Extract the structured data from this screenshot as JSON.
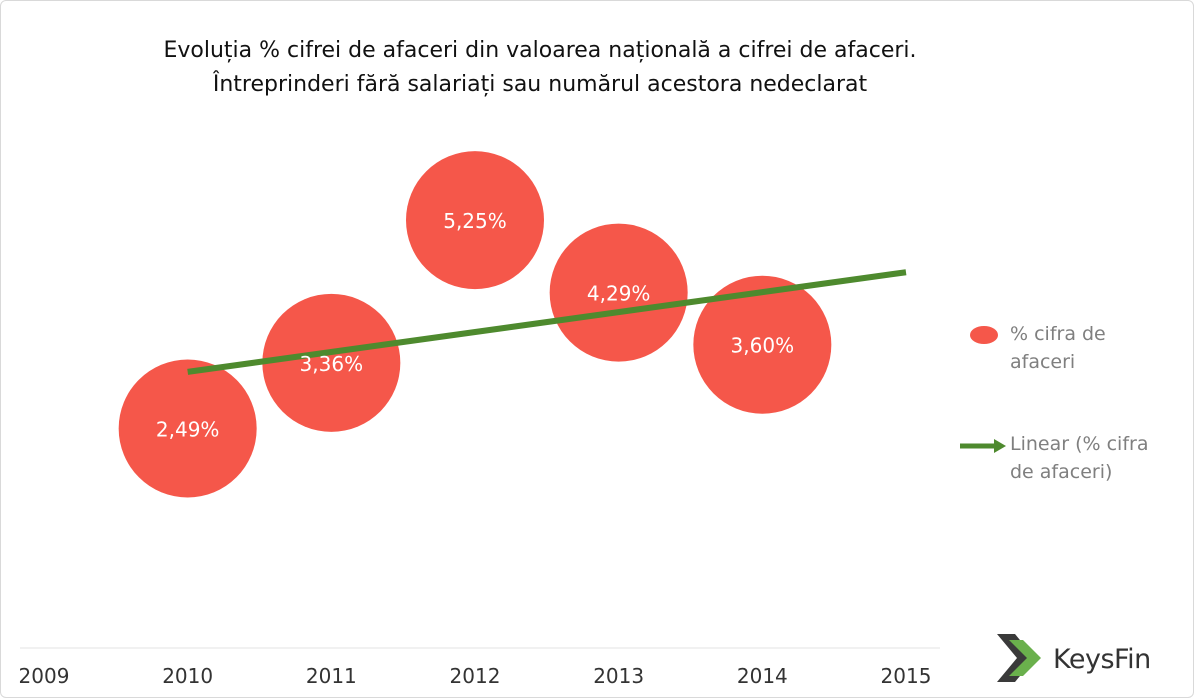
{
  "chart_data": {
    "type": "scatter",
    "title_line1": "Evoluția % cifrei de afaceri din valoarea națională  a cifrei de afaceri.",
    "title_line2": "Întreprinderi fără salariați sau numărul  acestora nedeclarat",
    "xlim": [
      2009,
      2015
    ],
    "x_ticks": [
      "2009",
      "2010",
      "2011",
      "2012",
      "2013",
      "2014",
      "2015"
    ],
    "series": [
      {
        "name": "% cifra de afaceri",
        "type": "bubble",
        "color": "#f5574a",
        "points": [
          {
            "x": 2010,
            "y": 2.49,
            "label": "2,49%"
          },
          {
            "x": 2011,
            "y": 3.36,
            "label": "3,36%"
          },
          {
            "x": 2012,
            "y": 5.25,
            "label": "5,25%"
          },
          {
            "x": 2013,
            "y": 4.29,
            "label": "4,29%"
          },
          {
            "x": 2014,
            "y": 3.6,
            "label": "3,60%"
          }
        ]
      },
      {
        "name": "Linear (% cifra de afaceri)",
        "type": "trendline",
        "color": "#4e8a2e",
        "start": {
          "x": 2010,
          "y": 3.24
        },
        "end": {
          "x": 2015,
          "y": 4.56
        }
      }
    ],
    "legend": {
      "position": "right",
      "items": [
        {
          "line1": "% cifra de",
          "line2": "afaceri"
        },
        {
          "line1": "Linear (% cifra",
          "line2": "de afaceri)"
        }
      ]
    }
  },
  "logo": {
    "text": "KeysFin"
  }
}
